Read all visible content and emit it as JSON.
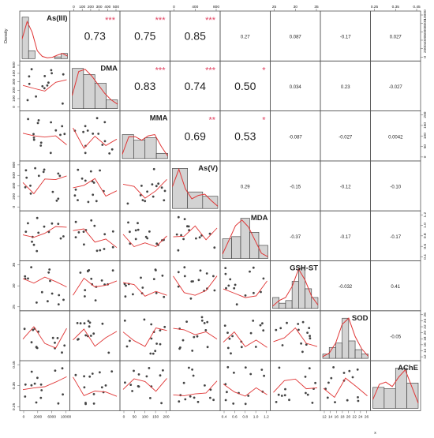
{
  "chart_data": {
    "type": "scatter",
    "figure": "correlation scatterplot matrix",
    "variables": [
      "As(III)",
      "DMA",
      "MMA",
      "As(V)",
      "MDA",
      "GSH-ST",
      "SOD",
      "AChE"
    ],
    "density_label": "Density",
    "bottom_label": "x",
    "correlations": [
      {
        "row": 0,
        "col": 1,
        "r": "0.73",
        "stars": "***"
      },
      {
        "row": 0,
        "col": 2,
        "r": "0.75",
        "stars": "***"
      },
      {
        "row": 0,
        "col": 3,
        "r": "0.85",
        "stars": "***"
      },
      {
        "row": 0,
        "col": 4,
        "r": "0.27",
        "stars": ""
      },
      {
        "row": 0,
        "col": 5,
        "r": "0.087",
        "stars": ""
      },
      {
        "row": 0,
        "col": 6,
        "r": "-0.17",
        "stars": ""
      },
      {
        "row": 0,
        "col": 7,
        "r": "0.027",
        "stars": ""
      },
      {
        "row": 1,
        "col": 2,
        "r": "0.83",
        "stars": "***"
      },
      {
        "row": 1,
        "col": 3,
        "r": "0.74",
        "stars": "***"
      },
      {
        "row": 1,
        "col": 4,
        "r": "0.50",
        "stars": "*"
      },
      {
        "row": 1,
        "col": 5,
        "r": "0.034",
        "stars": ""
      },
      {
        "row": 1,
        "col": 6,
        "r": "0.23",
        "stars": ""
      },
      {
        "row": 1,
        "col": 7,
        "r": "-0.027",
        "stars": ""
      },
      {
        "row": 2,
        "col": 3,
        "r": "0.69",
        "stars": "**"
      },
      {
        "row": 2,
        "col": 4,
        "r": "0.53",
        "stars": "*"
      },
      {
        "row": 2,
        "col": 5,
        "r": "-0.087",
        "stars": ""
      },
      {
        "row": 2,
        "col": 6,
        "r": "-0.027",
        "stars": ""
      },
      {
        "row": 2,
        "col": 7,
        "r": "0.0042",
        "stars": ""
      },
      {
        "row": 3,
        "col": 4,
        "r": "0.29",
        "stars": ""
      },
      {
        "row": 3,
        "col": 5,
        "r": "-0.15",
        "stars": ""
      },
      {
        "row": 3,
        "col": 6,
        "r": "-0.12",
        "stars": ""
      },
      {
        "row": 3,
        "col": 7,
        "r": "-0.10",
        "stars": ""
      },
      {
        "row": 4,
        "col": 5,
        "r": "-0.37",
        "stars": ""
      },
      {
        "row": 4,
        "col": 6,
        "r": "-0.17",
        "stars": ""
      },
      {
        "row": 4,
        "col": 7,
        "r": "-0.17",
        "stars": ""
      },
      {
        "row": 5,
        "col": 6,
        "r": "-0.032",
        "stars": ""
      },
      {
        "row": 5,
        "col": 7,
        "r": "0.41",
        "stars": ""
      },
      {
        "row": 6,
        "col": 7,
        "r": "-0.05",
        "stars": ""
      }
    ],
    "top_axes": [
      {
        "col": 1,
        "ticks": [
          "0",
          "100",
          "200",
          "300",
          "400",
          "500"
        ]
      },
      {
        "col": 3,
        "ticks": [
          "0",
          "400",
          "800"
        ]
      },
      {
        "col": 5,
        "ticks": [
          "25",
          "30",
          "35"
        ]
      },
      {
        "col": 7,
        "ticks": [
          "0.25",
          "0.35",
          "0.45"
        ]
      }
    ],
    "bottom_axes": [
      {
        "col": 0,
        "ticks": [
          "0",
          "2000",
          "6000",
          "10000"
        ]
      },
      {
        "col": 2,
        "ticks": [
          "0",
          "50",
          "100",
          "150",
          "200"
        ]
      },
      {
        "col": 4,
        "ticks": [
          "0.4",
          "0.6",
          "0.8",
          "1.0",
          "1.2"
        ]
      },
      {
        "col": 6,
        "ticks": [
          "12",
          "14",
          "16",
          "18",
          "20",
          "22",
          "24",
          "26"
        ]
      }
    ],
    "left_axes": [
      {
        "row": 1,
        "ticks": [
          "0",
          "100",
          "200",
          "300",
          "400",
          "500"
        ]
      },
      {
        "row": 3,
        "ticks": [
          "0",
          "200",
          "400",
          "600",
          "800"
        ]
      },
      {
        "row": 5,
        "ticks": [
          "25",
          "30",
          "35"
        ]
      },
      {
        "row": 7,
        "ticks": [
          "0.25",
          "0.35",
          "0.45"
        ]
      }
    ],
    "right_axes": [
      {
        "row": 0,
        "ticks": [
          "0",
          "2000",
          "4000",
          "6000",
          "8000",
          "10000"
        ]
      },
      {
        "row": 2,
        "ticks": [
          "0",
          "50",
          "100",
          "150",
          "200"
        ]
      },
      {
        "row": 4,
        "ticks": [
          "0.4",
          "0.6",
          "0.8",
          "1.0",
          "1.2"
        ]
      },
      {
        "row": 6,
        "ticks": [
          "12",
          "14",
          "16",
          "18",
          "20",
          "22",
          "24",
          "26"
        ]
      }
    ],
    "histograms": [
      [
        0.95,
        0.18,
        0.0,
        0.0,
        0.0,
        0.04,
        0.12
      ],
      [
        0.92,
        0.78,
        0.58,
        0.2
      ],
      [
        0.55,
        0.42,
        0.48,
        0.12
      ],
      [
        0.92,
        0.38,
        0.28
      ],
      [
        0.45,
        0.5,
        0.92,
        0.6,
        0.3
      ],
      [
        0.25,
        0.12,
        0.18,
        0.62,
        0.92,
        0.45,
        0.25
      ],
      [
        0.1,
        0.25,
        0.35,
        0.92,
        0.4,
        0.2,
        0.1
      ],
      [
        0.48,
        0.45,
        0.92,
        0.58
      ]
    ],
    "densities": [
      [
        0.45,
        0.85,
        0.6,
        0.18,
        0.05,
        0.02,
        0.03,
        0.08,
        0.12,
        0.06
      ],
      [
        0.3,
        0.85,
        0.9,
        0.75,
        0.55,
        0.35,
        0.2,
        0.1
      ],
      [
        0.1,
        0.5,
        0.5,
        0.42,
        0.52,
        0.55,
        0.28,
        0.06
      ],
      [
        0.5,
        0.9,
        0.45,
        0.22,
        0.3,
        0.33,
        0.18,
        0.05
      ],
      [
        0.1,
        0.42,
        0.75,
        0.88,
        0.72,
        0.42,
        0.12,
        0.04
      ],
      [
        0.05,
        0.18,
        0.25,
        0.5,
        0.9,
        0.65,
        0.28,
        0.08
      ],
      [
        0.04,
        0.12,
        0.35,
        0.78,
        0.92,
        0.5,
        0.22,
        0.05
      ],
      [
        0.2,
        0.55,
        0.6,
        0.5,
        0.72,
        0.88,
        0.5,
        0.12
      ]
    ],
    "colors": {
      "point": "#444444",
      "smooth": "#e03535",
      "stars": "#e04060",
      "bar_fill": "#d3d3d3",
      "border": "#555555"
    }
  }
}
